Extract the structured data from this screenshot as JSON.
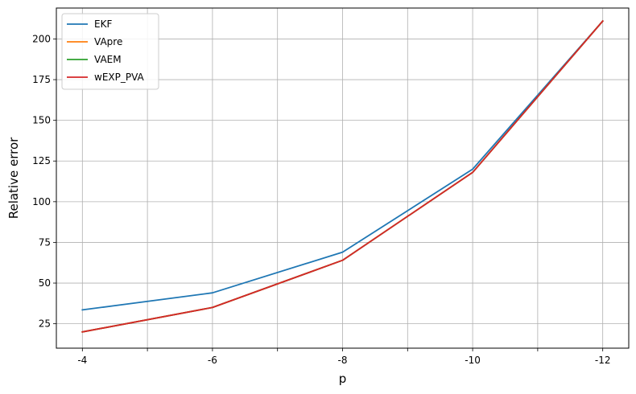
{
  "chart_data": {
    "type": "line",
    "xlabel": "p",
    "ylabel": "Relative error",
    "categories": [
      "-4",
      "",
      "-6",
      "",
      "-8",
      "",
      "-10",
      "",
      "-12"
    ],
    "x_positions": [
      0,
      1,
      2,
      3,
      4,
      5,
      6,
      7,
      8
    ],
    "yticks": [
      25,
      50,
      75,
      100,
      125,
      150,
      175,
      200
    ],
    "ylim": [
      10,
      219
    ],
    "xlim": [
      -0.4,
      8.4
    ],
    "grid": true,
    "legend_position": "top-left",
    "series": [
      {
        "name": "EKF",
        "color": "#1f77b4",
        "x": [
          0,
          2,
          4,
          6,
          8
        ],
        "values": [
          33.5,
          44,
          69,
          120,
          211
        ]
      },
      {
        "name": "VApre",
        "color": "#ff7f0e",
        "x": [
          0,
          2,
          4,
          6,
          8
        ],
        "values": [
          20,
          35,
          64,
          118,
          211
        ]
      },
      {
        "name": "VAEM",
        "color": "#2ca02c",
        "x": [
          0,
          2,
          4,
          6,
          8
        ],
        "values": [
          20,
          35,
          64,
          118,
          211
        ]
      },
      {
        "name": "wEXP_PVA",
        "color": "#d62728",
        "x": [
          0,
          2,
          4,
          6,
          8
        ],
        "values": [
          20,
          35,
          64,
          118,
          211
        ]
      }
    ]
  }
}
